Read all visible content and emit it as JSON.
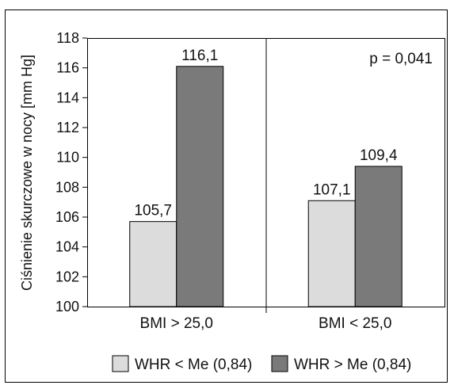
{
  "chart_data": {
    "type": "bar",
    "categories": [
      "BMI > 25,0",
      "BMI < 25,0"
    ],
    "series": [
      {
        "name": "WHR < Me (0,84)",
        "values": [
          105.7,
          107.1
        ],
        "labels": [
          "105,7",
          "107,1"
        ],
        "color": "#dcdcdc"
      },
      {
        "name": "WHR > Me (0,84)",
        "values": [
          116.1,
          109.4
        ],
        "labels": [
          "116,1",
          "109,4"
        ],
        "color": "#7a7a7a"
      }
    ],
    "ylabel": "Ciśnienie skurczowe w nocy [mm Hg]",
    "ylim": [
      100,
      118
    ],
    "yticks": [
      100,
      102,
      104,
      106,
      108,
      110,
      112,
      114,
      116,
      118
    ],
    "annotation": "p = 0,041",
    "grid": false,
    "legend_position": "bottom"
  }
}
